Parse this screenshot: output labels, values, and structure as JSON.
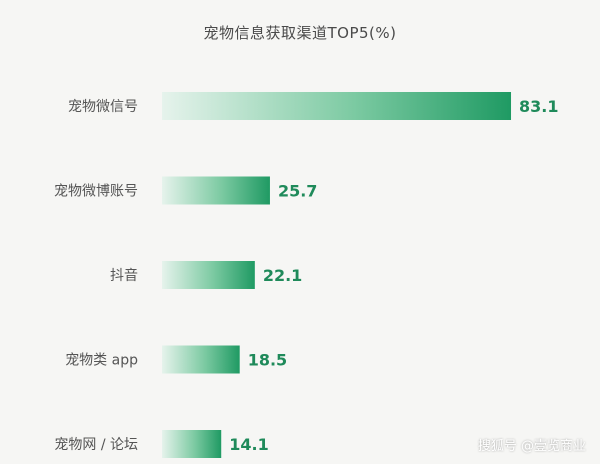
{
  "chart_data": {
    "type": "bar",
    "orientation": "horizontal",
    "title": "宠物信息获取渠道TOP5(%)",
    "categories": [
      "宠物微信号",
      "宠物微博账号",
      "抖音",
      "宠物类 app",
      "宠物网 / 论坛"
    ],
    "values": [
      83.1,
      25.7,
      22.1,
      18.5,
      14.1
    ],
    "value_labels": [
      "83.1",
      "25.7",
      "22.1",
      "18.5",
      "14.1"
    ],
    "xlim": [
      0,
      100
    ],
    "grid": false,
    "legend": "none"
  },
  "colors": {
    "bar_start": "#e6f3ec",
    "bar_mid": "#7ccaa2",
    "bar_end": "#1f9a63",
    "value_text": "#1f8a5a",
    "label_text": "#555555",
    "title_text": "#4a4a4a",
    "background": "#f6f6f4"
  },
  "watermark": {
    "text": "搜狐号 @壹览商业"
  }
}
